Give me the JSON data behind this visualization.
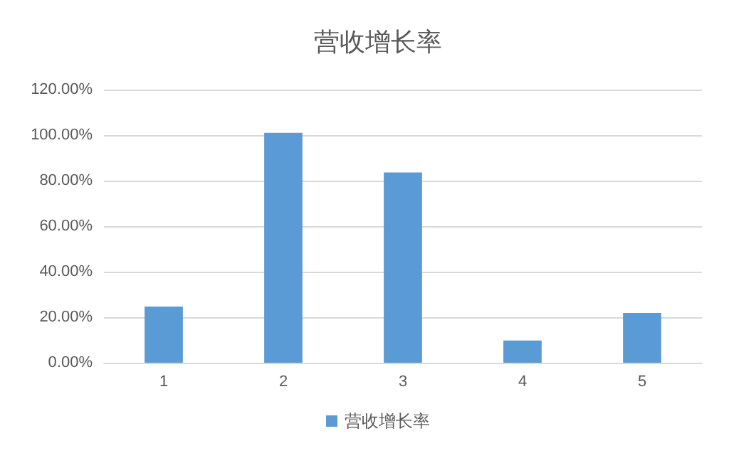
{
  "chart_data": {
    "type": "bar",
    "title": "营收增长率",
    "categories": [
      "1",
      "2",
      "3",
      "4",
      "5"
    ],
    "series": [
      {
        "name": "营收增长率",
        "color": "#5b9bd5",
        "values": [
          24.7,
          101.0,
          83.6,
          9.8,
          21.9
        ]
      }
    ],
    "ylim": [
      0,
      120
    ],
    "yticks": [
      {
        "value": 0,
        "label": "0.00%"
      },
      {
        "value": 20,
        "label": "20.00%"
      },
      {
        "value": 40,
        "label": "40.00%"
      },
      {
        "value": 60,
        "label": "60.00%"
      },
      {
        "value": 80,
        "label": "80.00%"
      },
      {
        "value": 100,
        "label": "100.00%"
      },
      {
        "value": 120,
        "label": "120.00%"
      }
    ],
    "grid": "y",
    "legend": "bottom"
  }
}
